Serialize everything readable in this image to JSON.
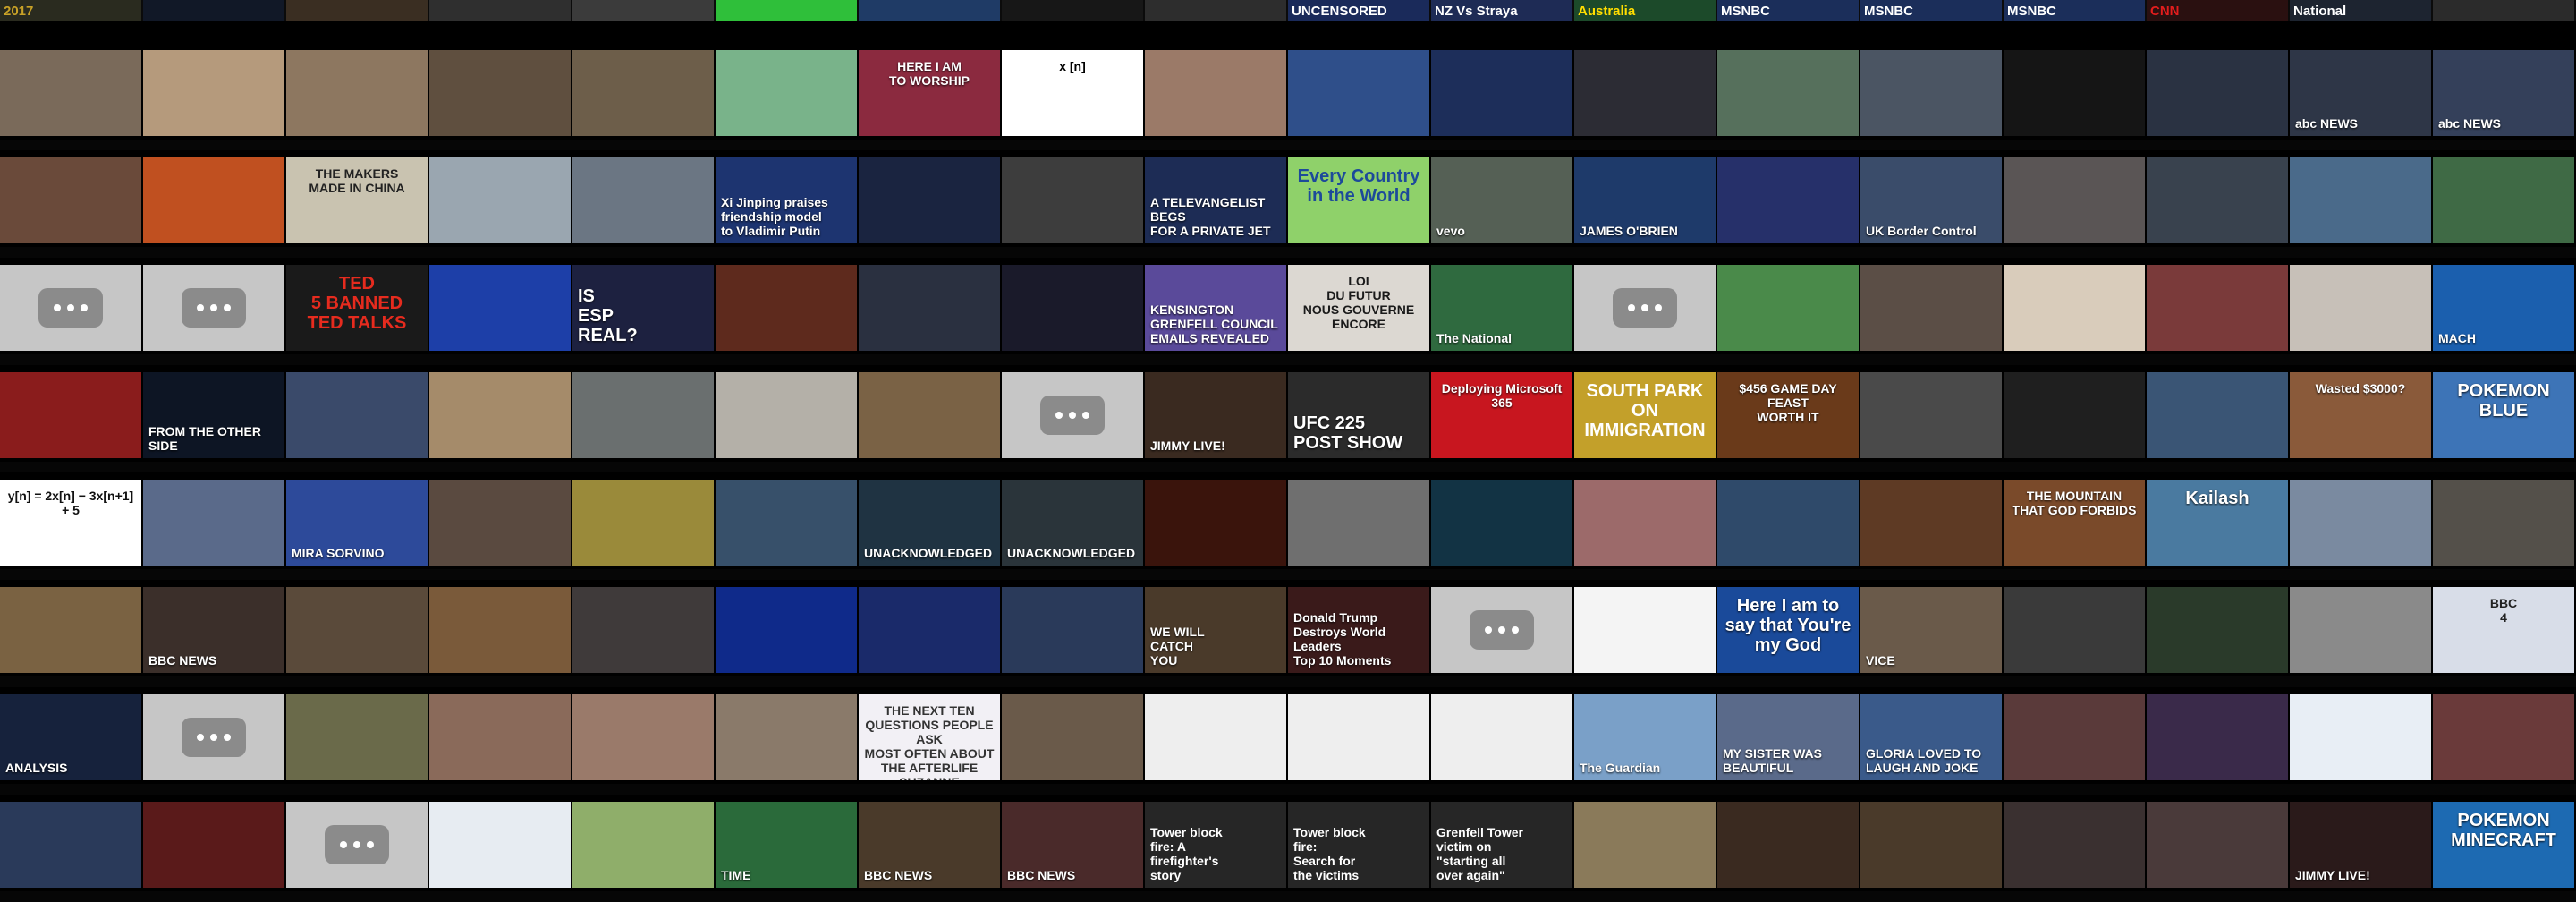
{
  "top_strip": [
    {
      "text": "2017",
      "color": "#c9a227",
      "bg": "#2a2b1f"
    },
    {
      "text": "",
      "color": "#ffffff",
      "bg": "#111827"
    },
    {
      "text": "",
      "color": "#ffffff",
      "bg": "#3a2e22"
    },
    {
      "text": "",
      "color": "#ffffff",
      "bg": "#2f2f2f"
    },
    {
      "text": "",
      "color": "#ffffff",
      "bg": "#3b3b3b"
    },
    {
      "text": "",
      "color": "#ffffff",
      "bg": "#2fbf3a"
    },
    {
      "text": "",
      "color": "#ffffff",
      "bg": "#1f3b66"
    },
    {
      "text": "",
      "color": "#ffffff",
      "bg": "#171717"
    },
    {
      "text": "",
      "color": "#ffffff",
      "bg": "#2d2d2d"
    },
    {
      "text": "UNCENSORED",
      "color": "#ffffff",
      "bg": "#1a2a5a"
    },
    {
      "text": "NZ Vs Straya",
      "color": "#ffffff",
      "bg": "#1e2b55"
    },
    {
      "text": "Australia",
      "color": "#ffdd00",
      "bg": "#1c4a2a"
    },
    {
      "text": "MSNBC",
      "color": "#ffffff",
      "bg": "#1b2e5a"
    },
    {
      "text": "MSNBC",
      "color": "#ffffff",
      "bg": "#1b2e5a"
    },
    {
      "text": "MSNBC",
      "color": "#ffffff",
      "bg": "#1b2e5a"
    },
    {
      "text": "CNN",
      "color": "#e21d1d",
      "bg": "#2a1010"
    },
    {
      "text": "National",
      "color": "#ffffff",
      "bg": "#1d2430"
    },
    {
      "text": "",
      "color": "#ffffff",
      "bg": "#2b2b2b"
    }
  ],
  "rows": [
    {
      "tiles": [
        {
          "bg": "#7a6a5a",
          "text": ""
        },
        {
          "bg": "#b59a7c",
          "text": ""
        },
        {
          "bg": "#8d7760",
          "text": ""
        },
        {
          "bg": "#5f4f3f",
          "text": ""
        },
        {
          "bg": "#6d5e4a",
          "text": ""
        },
        {
          "bg": "#79b38a",
          "text": ""
        },
        {
          "bg": "#8b2a3f",
          "text": "HERE I AM\nTO WORSHIP",
          "style": "centered"
        },
        {
          "bg": "#ffffff",
          "text": "x [n]",
          "style": "centered",
          "fg": "#000000"
        },
        {
          "bg": "#9b7a68",
          "text": ""
        },
        {
          "bg": "#2f4f8a",
          "text": ""
        },
        {
          "bg": "#1d2e5a",
          "text": ""
        },
        {
          "bg": "#2c2c34",
          "text": ""
        },
        {
          "bg": "#56705c",
          "text": ""
        },
        {
          "bg": "#4b5563",
          "text": ""
        },
        {
          "bg": "#151515",
          "text": ""
        },
        {
          "bg": "#2a3242",
          "text": ""
        },
        {
          "bg": "#2e3647",
          "text": "abc NEWS"
        },
        {
          "bg": "#34405a",
          "text": "abc NEWS"
        }
      ]
    },
    {
      "tiles": [
        {
          "bg": "#6a4a3a",
          "text": ""
        },
        {
          "bg": "#c05020",
          "text": ""
        },
        {
          "bg": "#c9c3b0",
          "text": "THE MAKERS\nMADE IN CHINA",
          "style": "centered",
          "fg": "#222222"
        },
        {
          "bg": "#9aa6b0",
          "text": ""
        },
        {
          "bg": "#6b7683",
          "text": ""
        },
        {
          "bg": "#1d3470",
          "text": "Xi Jinping praises friendship model\nto Vladimir Putin"
        },
        {
          "bg": "#1a2440",
          "text": ""
        },
        {
          "bg": "#3d3d3d",
          "text": ""
        },
        {
          "bg": "#1d2c55",
          "text": "A TELEVANGELIST BEGS\nFOR A PRIVATE JET"
        },
        {
          "bg": "#8fd16a",
          "text": "Every Country\nin the World",
          "style": "centered big",
          "fg": "#1d4a9a"
        },
        {
          "bg": "#556055",
          "text": "vevo"
        },
        {
          "bg": "#1e3a6a",
          "text": "JAMES O'BRIEN"
        },
        {
          "bg": "#26306a",
          "text": ""
        },
        {
          "bg": "#3a4c6a",
          "text": "UK Border Control"
        },
        {
          "bg": "#5a5555",
          "text": ""
        },
        {
          "bg": "#39424e",
          "text": ""
        },
        {
          "bg": "#4a6a8a",
          "text": ""
        },
        {
          "bg": "#3f6a45",
          "text": ""
        }
      ]
    },
    {
      "tiles": [
        {
          "placeholder": true
        },
        {
          "placeholder": true
        },
        {
          "bg": "#1a1a1a",
          "text": "TED\n5 BANNED TED TALKS",
          "style": "centered big",
          "fg": "#e62b1e"
        },
        {
          "bg": "#1d3fa8",
          "text": ""
        },
        {
          "bg": "#1d2140",
          "text": "IS\nESP\nREAL?",
          "style": "big"
        },
        {
          "bg": "#5e2a1d",
          "text": ""
        },
        {
          "bg": "#2a3040",
          "text": ""
        },
        {
          "bg": "#1a1a2a",
          "text": ""
        },
        {
          "bg": "#5a4a9a",
          "text": "KENSINGTON\nGRENFELL COUNCIL\nEMAILS REVEALED"
        },
        {
          "bg": "#dcd8d2",
          "text": "LOI\nDU FUTUR\nNOUS GOUVERNE\nENCORE",
          "style": "centered",
          "fg": "#1a1a1a"
        },
        {
          "bg": "#2f6a3f",
          "text": "The National"
        },
        {
          "placeholder": true
        },
        {
          "bg": "#4a8a4a",
          "text": ""
        },
        {
          "bg": "#5b4e46",
          "text": ""
        },
        {
          "bg": "#d9ccbb",
          "text": ""
        },
        {
          "bg": "#7a3a3a",
          "text": ""
        },
        {
          "bg": "#c7c0b8",
          "text": ""
        },
        {
          "bg": "#1b5fae",
          "text": "MACH"
        }
      ]
    },
    {
      "tiles": [
        {
          "bg": "#8a1c1c",
          "text": ""
        },
        {
          "bg": "#0d1524",
          "text": "FROM THE OTHER SIDE"
        },
        {
          "bg": "#3a4a6a",
          "text": ""
        },
        {
          "bg": "#a58b6a",
          "text": ""
        },
        {
          "bg": "#6a6f6f",
          "text": ""
        },
        {
          "bg": "#b4b0a8",
          "text": ""
        },
        {
          "bg": "#7a6245",
          "text": ""
        },
        {
          "placeholder": true
        },
        {
          "bg": "#3a2a20",
          "text": "JIMMY LIVE!"
        },
        {
          "bg": "#2b2b2b",
          "text": "UFC 225\nPOST SHOW",
          "style": "big"
        },
        {
          "bg": "#c8161f",
          "text": "Deploying Microsoft 365",
          "style": "centered"
        },
        {
          "bg": "#c3a02a",
          "text": "SOUTH PARK\nON\nIMMIGRATION",
          "style": "centered big",
          "fg": "#ffffff"
        },
        {
          "bg": "#6a3a1a",
          "text": "$456 GAME DAY FEAST\nWORTH IT",
          "style": "centered"
        },
        {
          "bg": "#4a4a4a",
          "text": ""
        },
        {
          "bg": "#1f1f1f",
          "text": ""
        },
        {
          "bg": "#3a5575",
          "text": ""
        },
        {
          "bg": "#8a5a3a",
          "text": "Wasted $3000?",
          "style": "centered"
        },
        {
          "bg": "#3d74b7",
          "text": "POKEMON\nBLUE",
          "style": "centered big"
        }
      ]
    },
    {
      "tiles": [
        {
          "bg": "#ffffff",
          "text": "y[n] = 2x[n] − 3x[n+1] + 5",
          "style": "centered",
          "fg": "#111111"
        },
        {
          "bg": "#5a6a8a",
          "text": ""
        },
        {
          "bg": "#2d4a9a",
          "text": "MIRA SORVINO"
        },
        {
          "bg": "#5a4a40",
          "text": ""
        },
        {
          "bg": "#9a8a3a",
          "text": ""
        },
        {
          "bg": "#37506a",
          "text": ""
        },
        {
          "bg": "#1f3342",
          "text": "UNACKNOWLEDGED"
        },
        {
          "bg": "#2a343a",
          "text": "UNACKNOWLEDGED"
        },
        {
          "bg": "#3a140c",
          "text": ""
        },
        {
          "bg": "#6f6f6f",
          "text": ""
        },
        {
          "bg": "#123344",
          "text": ""
        },
        {
          "bg": "#9c6a6a",
          "text": ""
        },
        {
          "bg": "#2f4a6a",
          "text": ""
        },
        {
          "bg": "#5e3a24",
          "text": ""
        },
        {
          "bg": "#7a4a2a",
          "text": "THE MOUNTAIN\nTHAT GOD FORBIDS",
          "style": "centered"
        },
        {
          "bg": "#4a7aa0",
          "text": "Kailash",
          "style": "centered big"
        },
        {
          "bg": "#7a8aa0",
          "text": ""
        },
        {
          "bg": "#54504a",
          "text": ""
        }
      ]
    },
    {
      "tiles": [
        {
          "bg": "#7a6242",
          "text": ""
        },
        {
          "bg": "#3b2f2a",
          "text": "BBC NEWS"
        },
        {
          "bg": "#5a4a3a",
          "text": ""
        },
        {
          "bg": "#7a5a3a",
          "text": ""
        },
        {
          "bg": "#3f3a3a",
          "text": ""
        },
        {
          "bg": "#0f2a8a",
          "text": ""
        },
        {
          "bg": "#1a2a6a",
          "text": ""
        },
        {
          "bg": "#2a3a5a",
          "text": ""
        },
        {
          "bg": "#4a3a2a",
          "text": "WE WILL\nCATCH\nYOU"
        },
        {
          "bg": "#3a1a1a",
          "text": "Donald Trump\nDestroys World Leaders\nTop 10 Moments"
        },
        {
          "placeholder": true
        },
        {
          "bg": "#f4f4f4",
          "text": "",
          "fg": "#333333"
        },
        {
          "bg": "#1a4a9a",
          "text": "Here I am to\nsay that You're\nmy God",
          "style": "centered big"
        },
        {
          "bg": "#6a5a4a",
          "text": "VICE"
        },
        {
          "bg": "#3a3a3a",
          "text": ""
        },
        {
          "bg": "#2a3a2a",
          "text": ""
        },
        {
          "bg": "#8a8a8a",
          "text": ""
        },
        {
          "bg": "#d8dde8",
          "text": "BBC\n4",
          "style": "centered",
          "fg": "#222222"
        }
      ]
    },
    {
      "tiles": [
        {
          "bg": "#16223c",
          "text": "ANALYSIS"
        },
        {
          "placeholder": true
        },
        {
          "bg": "#6a6a4a",
          "text": ""
        },
        {
          "bg": "#8a6a5a",
          "text": ""
        },
        {
          "bg": "#9a7a6a",
          "text": ""
        },
        {
          "bg": "#8a7a6a",
          "text": ""
        },
        {
          "bg": "#f2f0f5",
          "text": "THE NEXT TEN QUESTIONS PEOPLE ASK\nMOST OFTEN ABOUT THE AFTERLIFE\nSUZANNE GIESEMANN",
          "style": "centered",
          "fg": "#333333"
        },
        {
          "bg": "#6a5a4a",
          "text": ""
        },
        {
          "bg": "#eeeeee",
          "text": ""
        },
        {
          "bg": "#eeeeee",
          "text": ""
        },
        {
          "bg": "#eeeeee",
          "text": ""
        },
        {
          "bg": "#7aa0c8",
          "text": "The Guardian"
        },
        {
          "bg": "#5a6a8a",
          "text": "MY SISTER WAS\nBEAUTIFUL"
        },
        {
          "bg": "#3a5a8a",
          "text": "GLORIA LOVED TO\nLAUGH AND JOKE"
        },
        {
          "bg": "#5a3a3a",
          "text": ""
        },
        {
          "bg": "#3a2a4a",
          "text": ""
        },
        {
          "bg": "#e8eef5",
          "text": ""
        },
        {
          "bg": "#6a3a3a",
          "text": ""
        }
      ]
    },
    {
      "tiles": [
        {
          "bg": "#2a3a5a",
          "text": ""
        },
        {
          "bg": "#5a1a1a",
          "text": ""
        },
        {
          "placeholder": true
        },
        {
          "bg": "#e7ecf2",
          "text": ""
        },
        {
          "bg": "#8fae6a",
          "text": ""
        },
        {
          "bg": "#2a6a3a",
          "text": "TIME"
        },
        {
          "bg": "#4a3a2a",
          "text": "BBC NEWS"
        },
        {
          "bg": "#4a2a2a",
          "text": "BBC NEWS"
        },
        {
          "bg": "#262626",
          "text": "Tower block\nfire: A\nfirefighter's\nstory",
          "fg": "#ffffff"
        },
        {
          "bg": "#262626",
          "text": "Tower block\nfire:\nSearch for\nthe victims",
          "fg": "#ffffff"
        },
        {
          "bg": "#262626",
          "text": "Grenfell Tower\nvictim on\n\"starting all\nover again\"",
          "fg": "#ffffff"
        },
        {
          "bg": "#8a7a5a",
          "text": ""
        },
        {
          "bg": "#3a2a20",
          "text": ""
        },
        {
          "bg": "#4a3a2a",
          "text": ""
        },
        {
          "bg": "#3a3030",
          "text": ""
        },
        {
          "bg": "#4a3a3a",
          "text": ""
        },
        {
          "bg": "#2a1a1a",
          "text": "JIMMY LIVE!"
        },
        {
          "bg": "#1d6ab2",
          "text": "POKEMON\nMINECRAFT",
          "style": "centered big"
        }
      ]
    }
  ],
  "strips": [
    {
      "labels": []
    },
    {
      "labels": []
    },
    {
      "labels": []
    },
    {
      "labels": []
    },
    {
      "labels": []
    },
    {
      "labels": []
    },
    {
      "labels": []
    },
    {
      "labels": []
    }
  ]
}
